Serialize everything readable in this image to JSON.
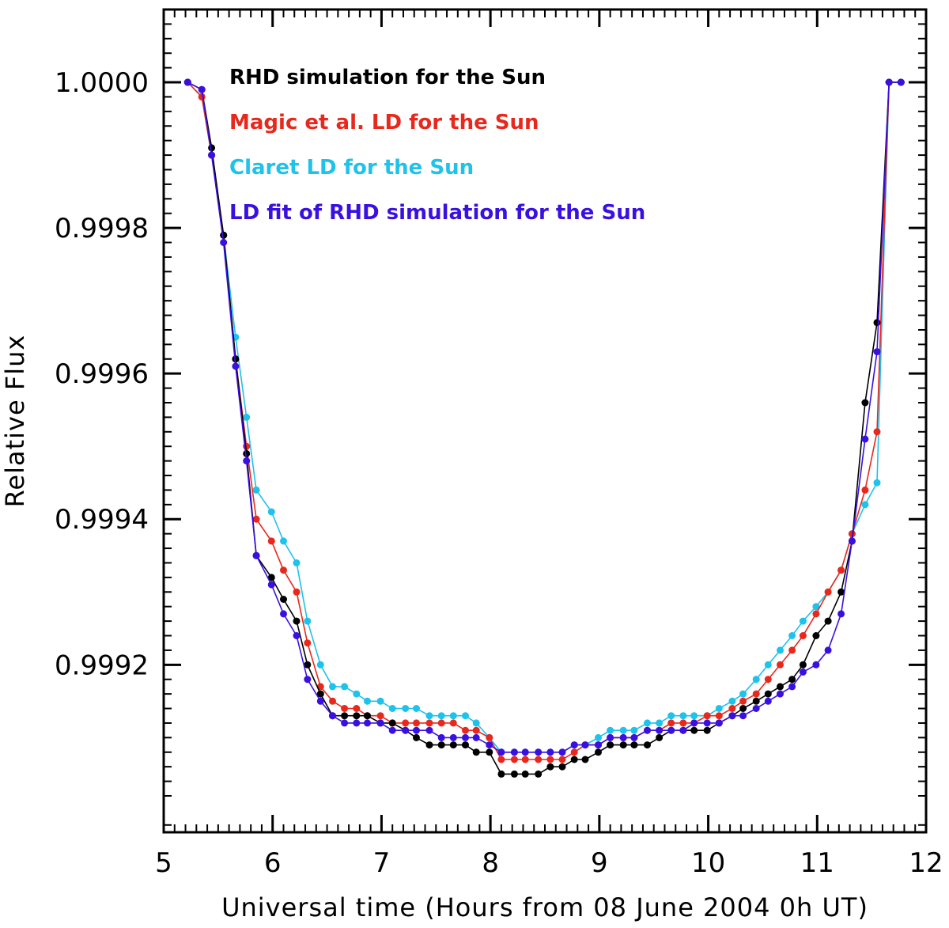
{
  "chart_data": {
    "type": "line",
    "title": "",
    "xlabel": "Universal time (Hours from 08 June 2004 0h UT)",
    "ylabel": "Relative Flux",
    "xlim": [
      5,
      12
    ],
    "ylim": [
      0.99897,
      1.0001
    ],
    "xticks": [
      5,
      6,
      7,
      8,
      9,
      10,
      11,
      12
    ],
    "xtick_labels": [
      "5",
      "6",
      "7",
      "8",
      "9",
      "10",
      "11",
      "12"
    ],
    "yticks": [
      0.9992,
      0.9994,
      0.9996,
      0.9998,
      1.0
    ],
    "ytick_labels": [
      "0.9992",
      "0.9994",
      "0.9996",
      "0.9998",
      "1.0000"
    ],
    "grid": false,
    "legend_position": "top-left",
    "x": [
      5.22,
      5.35,
      5.44,
      5.55,
      5.66,
      5.76,
      5.85,
      5.99,
      6.1,
      6.22,
      6.32,
      6.44,
      6.55,
      6.66,
      6.77,
      6.87,
      6.99,
      7.1,
      7.22,
      7.32,
      7.44,
      7.55,
      7.66,
      7.77,
      7.87,
      7.99,
      8.1,
      8.22,
      8.32,
      8.44,
      8.55,
      8.66,
      8.77,
      8.87,
      8.99,
      9.1,
      9.22,
      9.32,
      9.44,
      9.55,
      9.66,
      9.77,
      9.87,
      9.99,
      10.1,
      10.22,
      10.32,
      10.44,
      10.55,
      10.66,
      10.77,
      10.87,
      10.99,
      11.1,
      11.22,
      11.32,
      11.44,
      11.55,
      11.66,
      11.77
    ],
    "series": [
      {
        "name": "RHD simulation for the Sun",
        "color": "#000000",
        "values": [
          1.0,
          0.99999,
          0.99991,
          0.99979,
          0.99962,
          0.99949,
          0.99935,
          0.99932,
          0.99929,
          0.99926,
          0.9992,
          0.99916,
          0.99913,
          0.99913,
          0.99913,
          0.99913,
          0.99912,
          0.99912,
          0.99911,
          0.9991,
          0.99909,
          0.99909,
          0.99909,
          0.99909,
          0.99908,
          0.99908,
          0.99905,
          0.99905,
          0.99905,
          0.99905,
          0.99906,
          0.99906,
          0.99907,
          0.99907,
          0.99908,
          0.99909,
          0.99909,
          0.99909,
          0.99909,
          0.9991,
          0.99911,
          0.99911,
          0.99911,
          0.99911,
          0.99912,
          0.99913,
          0.99914,
          0.99915,
          0.99916,
          0.99917,
          0.99918,
          0.9992,
          0.99924,
          0.99926,
          0.9993,
          0.99937,
          0.99956,
          0.99967,
          1.0,
          1.0
        ]
      },
      {
        "name": "Magic et al. LD for the Sun",
        "color": "#e8281c",
        "values": [
          1.0,
          0.99998,
          0.9999,
          0.99979,
          0.99962,
          0.9995,
          0.9994,
          0.99937,
          0.99933,
          0.9993,
          0.99923,
          0.99917,
          0.99915,
          0.99914,
          0.99914,
          0.99913,
          0.99913,
          0.99912,
          0.99912,
          0.99912,
          0.99912,
          0.99912,
          0.99912,
          0.99911,
          0.99911,
          0.9991,
          0.99907,
          0.99907,
          0.99907,
          0.99907,
          0.99907,
          0.99907,
          0.99908,
          0.99909,
          0.99909,
          0.9991,
          0.9991,
          0.9991,
          0.99911,
          0.99911,
          0.99912,
          0.99912,
          0.99912,
          0.99913,
          0.99913,
          0.99914,
          0.99915,
          0.99916,
          0.99918,
          0.9992,
          0.99922,
          0.99924,
          0.99927,
          0.9993,
          0.99933,
          0.99938,
          0.99944,
          0.99952,
          1.0,
          1.0
        ]
      },
      {
        "name": "Claret LD for the Sun",
        "color": "#1ec2ea",
        "values": [
          1.0,
          0.99998,
          0.9999,
          0.99979,
          0.99965,
          0.99954,
          0.99944,
          0.99941,
          0.99937,
          0.99934,
          0.99926,
          0.9992,
          0.99917,
          0.99917,
          0.99916,
          0.99915,
          0.99915,
          0.99914,
          0.99914,
          0.99914,
          0.99913,
          0.99913,
          0.99913,
          0.99913,
          0.99912,
          0.9991,
          0.99908,
          0.99908,
          0.99908,
          0.99908,
          0.99908,
          0.99908,
          0.99909,
          0.99909,
          0.9991,
          0.99911,
          0.99911,
          0.99911,
          0.99912,
          0.99912,
          0.99913,
          0.99913,
          0.99913,
          0.99913,
          0.99914,
          0.99915,
          0.99916,
          0.99918,
          0.9992,
          0.99922,
          0.99924,
          0.99926,
          0.99928,
          0.9993,
          0.99933,
          0.99938,
          0.99942,
          0.99945,
          1.0,
          1.0
        ]
      },
      {
        "name": "LD fit of RHD simulation for the Sun",
        "color": "#3a10e0",
        "values": [
          1.0,
          0.99999,
          0.9999,
          0.99978,
          0.99961,
          0.99948,
          0.99935,
          0.99931,
          0.99927,
          0.99924,
          0.99918,
          0.99915,
          0.99913,
          0.99912,
          0.99912,
          0.99912,
          0.99912,
          0.99911,
          0.99911,
          0.99911,
          0.99911,
          0.9991,
          0.9991,
          0.9991,
          0.9991,
          0.99909,
          0.99908,
          0.99908,
          0.99908,
          0.99908,
          0.99908,
          0.99908,
          0.99909,
          0.99909,
          0.99909,
          0.9991,
          0.9991,
          0.9991,
          0.99911,
          0.99911,
          0.99911,
          0.99911,
          0.99912,
          0.99912,
          0.99912,
          0.99913,
          0.99913,
          0.99914,
          0.99915,
          0.99916,
          0.99917,
          0.99919,
          0.9992,
          0.99922,
          0.99927,
          0.99937,
          0.99951,
          0.99963,
          1.0,
          1.0
        ]
      }
    ]
  }
}
